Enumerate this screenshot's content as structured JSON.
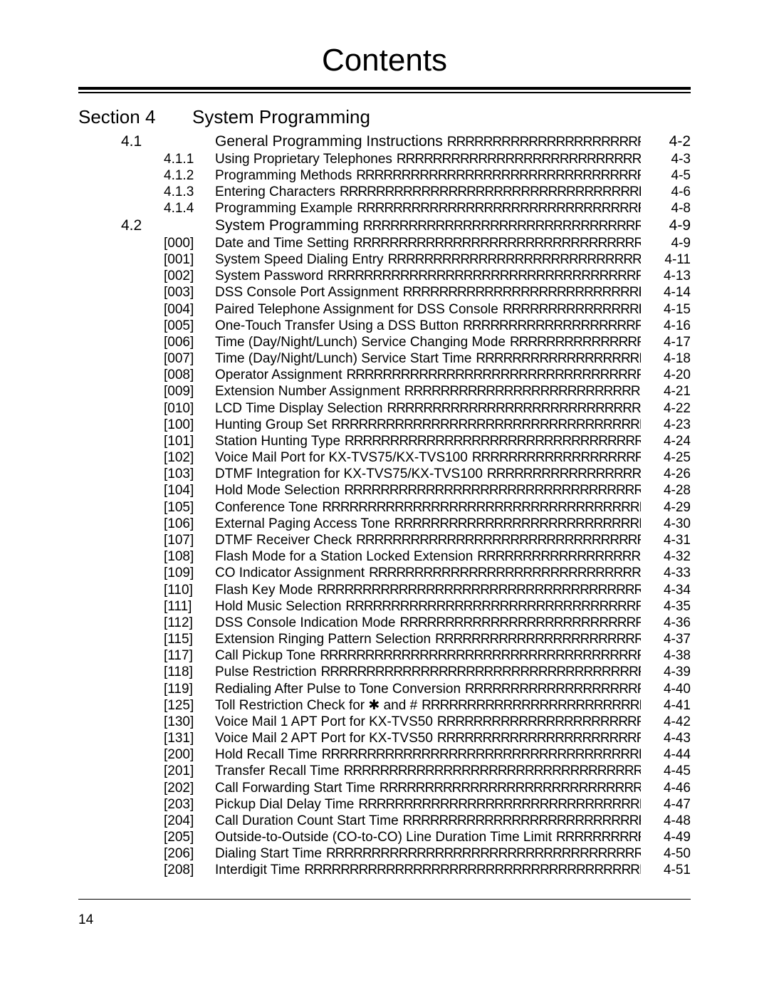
{
  "title": "Contents",
  "section_label": "Section 4",
  "section_name": "System Programming",
  "toc": [
    {
      "lvl": 1,
      "num": "4.1",
      "key": "",
      "text": "General Programming Instructions",
      "page": "4-2"
    },
    {
      "lvl": 2,
      "num": "",
      "key": "4.1.1",
      "text": "Using Proprietary Telephones",
      "page": "4-3"
    },
    {
      "lvl": 2,
      "num": "",
      "key": "4.1.2",
      "text": "Programming Methods",
      "page": "4-5"
    },
    {
      "lvl": 2,
      "num": "",
      "key": "4.1.3",
      "text": "Entering Characters",
      "page": "4-6"
    },
    {
      "lvl": 2,
      "num": "",
      "key": "4.1.4",
      "text": "Programming Example",
      "page": "4-8"
    },
    {
      "lvl": 1,
      "num": "4.2",
      "key": "",
      "text": "System Programming",
      "page": "4-9"
    },
    {
      "lvl": 2,
      "num": "",
      "key": "[000]",
      "text": "Date and Time Setting",
      "page": "4-9"
    },
    {
      "lvl": 2,
      "num": "",
      "key": "[001]",
      "text": "System Speed Dialing Entry",
      "page": "4-11"
    },
    {
      "lvl": 2,
      "num": "",
      "key": "[002]",
      "text": "System Password",
      "page": "4-13"
    },
    {
      "lvl": 2,
      "num": "",
      "key": "[003]",
      "text": "DSS Console Port Assignment",
      "page": "4-14"
    },
    {
      "lvl": 2,
      "num": "",
      "key": "[004]",
      "text": "Paired Telephone Assignment for DSS Console",
      "page": "4-15"
    },
    {
      "lvl": 2,
      "num": "",
      "key": "[005]",
      "text": "One-Touch Transfer Using a DSS Button",
      "page": "4-16"
    },
    {
      "lvl": 2,
      "num": "",
      "key": "[006]",
      "text": "Time (Day/Night/Lunch) Service Changing Mode",
      "page": "4-17"
    },
    {
      "lvl": 2,
      "num": "",
      "key": "[007]",
      "text": "Time (Day/Night/Lunch) Service Start Time",
      "page": "4-18"
    },
    {
      "lvl": 2,
      "num": "",
      "key": "[008]",
      "text": "Operator Assignment",
      "page": "4-20"
    },
    {
      "lvl": 2,
      "num": "",
      "key": "[009]",
      "text": "Extension Number Assignment",
      "page": "4-21"
    },
    {
      "lvl": 2,
      "num": "",
      "key": "[010]",
      "text": "LCD Time Display Selection",
      "page": "4-22"
    },
    {
      "lvl": 2,
      "num": "",
      "key": "[100]",
      "text": "Hunting Group Set",
      "page": "4-23"
    },
    {
      "lvl": 2,
      "num": "",
      "key": "[101]",
      "text": "Station Hunting Type",
      "page": "4-24"
    },
    {
      "lvl": 2,
      "num": "",
      "key": "[102]",
      "text": "Voice Mail Port for KX-TVS75/KX-TVS100",
      "page": "4-25"
    },
    {
      "lvl": 2,
      "num": "",
      "key": "[103]",
      "text": "DTMF Integration for KX-TVS75/KX-TVS100",
      "page": "4-26"
    },
    {
      "lvl": 2,
      "num": "",
      "key": "[104]",
      "text": "Hold Mode Selection",
      "page": "4-28"
    },
    {
      "lvl": 2,
      "num": "",
      "key": "[105]",
      "text": "Conference Tone",
      "page": "4-29"
    },
    {
      "lvl": 2,
      "num": "",
      "key": "[106]",
      "text": "External Paging Access Tone",
      "page": "4-30"
    },
    {
      "lvl": 2,
      "num": "",
      "key": "[107]",
      "text": "DTMF Receiver Check",
      "page": "4-31"
    },
    {
      "lvl": 2,
      "num": "",
      "key": "[108]",
      "text": "Flash Mode for a Station Locked Extension",
      "page": "4-32"
    },
    {
      "lvl": 2,
      "num": "",
      "key": "[109]",
      "text": "CO Indicator Assignment",
      "page": "4-33"
    },
    {
      "lvl": 2,
      "num": "",
      "key": "[110]",
      "text": "Flash Key Mode",
      "page": "4-34"
    },
    {
      "lvl": 2,
      "num": "",
      "key": "[111]",
      "text": "Hold Music Selection",
      "page": "4-35"
    },
    {
      "lvl": 2,
      "num": "",
      "key": "[112]",
      "text": "DSS Console Indication Mode",
      "page": "4-36"
    },
    {
      "lvl": 2,
      "num": "",
      "key": "[115]",
      "text": "Extension Ringing Pattern Selection",
      "page": "4-37"
    },
    {
      "lvl": 2,
      "num": "",
      "key": "[117]",
      "text": "Call Pickup Tone",
      "page": "4-38"
    },
    {
      "lvl": 2,
      "num": "",
      "key": "[118]",
      "text": "Pulse Restriction",
      "page": "4-39"
    },
    {
      "lvl": 2,
      "num": "",
      "key": "[119]",
      "text": "Redialing After Pulse to Tone Conversion",
      "page": "4-40"
    },
    {
      "lvl": 2,
      "num": "",
      "key": "[125]",
      "text": "Toll Restriction Check for ✱ and #",
      "page": "4-41"
    },
    {
      "lvl": 2,
      "num": "",
      "key": "[130]",
      "text": "Voice Mail 1 APT Port for KX-TVS50",
      "page": "4-42"
    },
    {
      "lvl": 2,
      "num": "",
      "key": "[131]",
      "text": "Voice Mail 2 APT Port for KX-TVS50",
      "page": "4-43"
    },
    {
      "lvl": 2,
      "num": "",
      "key": "[200]",
      "text": "Hold Recall Time",
      "page": "4-44"
    },
    {
      "lvl": 2,
      "num": "",
      "key": "[201]",
      "text": "Transfer Recall Time",
      "page": "4-45"
    },
    {
      "lvl": 2,
      "num": "",
      "key": "[202]",
      "text": "Call Forwarding Start Time",
      "page": "4-46"
    },
    {
      "lvl": 2,
      "num": "",
      "key": "[203]",
      "text": "Pickup Dial Delay Time",
      "page": "4-47"
    },
    {
      "lvl": 2,
      "num": "",
      "key": "[204]",
      "text": "Call Duration Count Start Time",
      "page": "4-48"
    },
    {
      "lvl": 2,
      "num": "",
      "key": "[205]",
      "text": "Outside-to-Outside (CO-to-CO) Line Duration Time Limit",
      "page": "4-49"
    },
    {
      "lvl": 2,
      "num": "",
      "key": "[206]",
      "text": "Dialing Start Time",
      "page": "4-50"
    },
    {
      "lvl": 2,
      "num": "",
      "key": "[208]",
      "text": "Interdigit Time",
      "page": "4-51"
    }
  ],
  "leader_char": "R",
  "page_number": "14"
}
